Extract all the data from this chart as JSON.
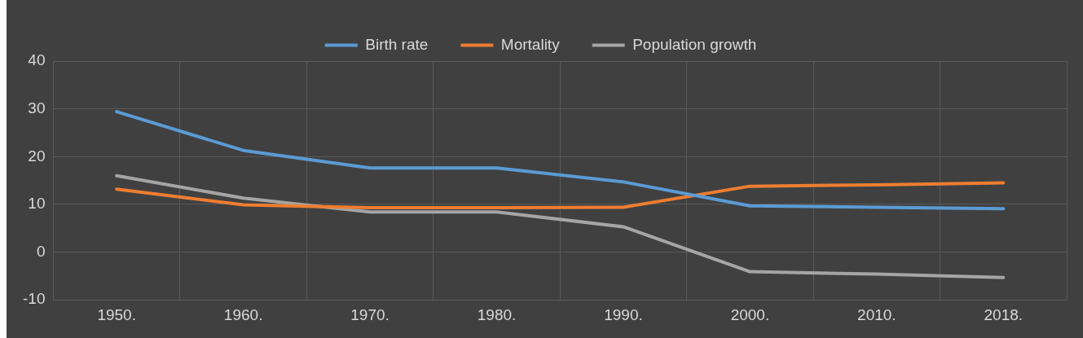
{
  "chart_data": {
    "type": "line",
    "categories": [
      "1950.",
      "1960.",
      "1970.",
      "1980.",
      "1990.",
      "2000.",
      "2010.",
      "2018."
    ],
    "series": [
      {
        "name": "Birth rate",
        "color": "#5b9bd5",
        "values": [
          29.4,
          21.3,
          17.6,
          17.6,
          14.7,
          9.7,
          9.4,
          9.1
        ]
      },
      {
        "name": "Mortality",
        "color": "#ed7d31",
        "values": [
          13.2,
          9.9,
          9.3,
          9.3,
          9.4,
          13.8,
          14.1,
          14.5
        ]
      },
      {
        "name": "Population growth",
        "color": "#a5a5a5",
        "values": [
          16.0,
          11.3,
          8.4,
          8.4,
          5.3,
          -4.1,
          -4.6,
          -5.3
        ]
      }
    ],
    "ylim": [
      -10,
      40
    ],
    "yticks": [
      -10,
      0,
      10,
      20,
      30,
      40
    ],
    "grid": true,
    "legend": "top",
    "marker": "none",
    "line_style": "solid"
  }
}
